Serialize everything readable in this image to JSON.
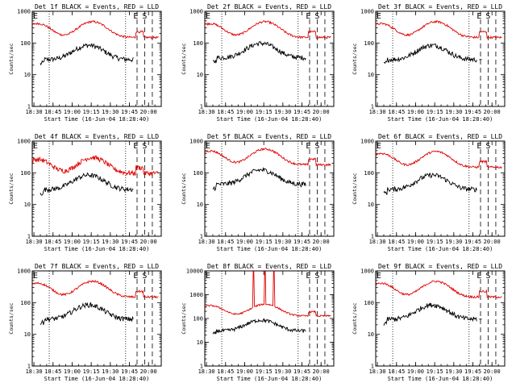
{
  "chart_data": [
    {
      "type": "line",
      "title": "Det 1f BLACK = Events, RED = LLD",
      "xlabel": "Start Time (16-Jun-04 18:28:40)",
      "ylabel": "Counts/sec",
      "xticks": [
        "18:30",
        "18:45",
        "19:00",
        "19:15",
        "19:30",
        "19:45",
        "20:00"
      ],
      "yticks": [
        "1",
        "10",
        "100",
        "1000"
      ],
      "ylim": [
        1,
        1000
      ],
      "series": [
        {
          "name": "Events",
          "color": "#000000"
        },
        {
          "name": "LLD",
          "color": "#e00000"
        }
      ],
      "markers": [
        "E",
        "E",
        "S"
      ]
    },
    {
      "type": "line",
      "title": "Det 2f BLACK = Events, RED = LLD",
      "xlabel": "Start Time (16-Jun-04 18:28:40)",
      "ylabel": "Counts/sec",
      "xticks": [
        "18:30",
        "18:45",
        "19:00",
        "19:15",
        "19:30",
        "19:45",
        "20:00"
      ],
      "yticks": [
        "1",
        "10",
        "100",
        "1000"
      ],
      "ylim": [
        1,
        1000
      ],
      "series": [
        {
          "name": "Events",
          "color": "#000000"
        },
        {
          "name": "LLD",
          "color": "#e00000"
        }
      ],
      "markers": [
        "E",
        "E",
        "S"
      ]
    },
    {
      "type": "line",
      "title": "Det 3f BLACK = Events, RED = LLD",
      "xlabel": "Start Time (16-Jun-04 18:28:40)",
      "ylabel": "Counts/sec",
      "xticks": [
        "18:30",
        "18:45",
        "19:00",
        "19:15",
        "19:30",
        "19:45",
        "20:00"
      ],
      "yticks": [
        "1",
        "10",
        "100",
        "1000"
      ],
      "ylim": [
        1,
        1000
      ],
      "series": [
        {
          "name": "Events",
          "color": "#000000"
        },
        {
          "name": "LLD",
          "color": "#e00000"
        }
      ],
      "markers": [
        "E",
        "E",
        "S"
      ]
    },
    {
      "type": "line",
      "title": "Det 4f BLACK = Events, RED = LLD",
      "xlabel": "Start Time (16-Jun-04 18:28:40)",
      "ylabel": "Counts/sec",
      "xticks": [
        "18:30",
        "18:45",
        "19:00",
        "19:15",
        "19:30",
        "19:45",
        "20:00"
      ],
      "yticks": [
        "1",
        "10",
        "100",
        "1000"
      ],
      "ylim": [
        1,
        1000
      ],
      "series": [
        {
          "name": "Events",
          "color": "#000000"
        },
        {
          "name": "LLD",
          "color": "#e00000"
        }
      ],
      "markers": [
        "E",
        "E",
        "S"
      ]
    },
    {
      "type": "line",
      "title": "Det 5f BLACK = Events, RED = LLD",
      "xlabel": "Start Time (16-Jun-04 18:28:40)",
      "ylabel": "Counts/sec",
      "xticks": [
        "18:30",
        "18:45",
        "19:00",
        "19:15",
        "19:30",
        "19:45",
        "20:00"
      ],
      "yticks": [
        "1",
        "10",
        "100",
        "1000"
      ],
      "ylim": [
        1,
        1000
      ],
      "series": [
        {
          "name": "Events",
          "color": "#000000"
        },
        {
          "name": "LLD",
          "color": "#e00000"
        }
      ],
      "markers": [
        "E",
        "E",
        "S"
      ]
    },
    {
      "type": "line",
      "title": "Det 6f BLACK = Events, RED = LLD",
      "xlabel": "Start Time (16-Jun-04 18:28:40)",
      "ylabel": "Counts/sec",
      "xticks": [
        "18:30",
        "18:45",
        "19:00",
        "19:15",
        "19:30",
        "19:45",
        "20:00"
      ],
      "yticks": [
        "1",
        "10",
        "100",
        "1000"
      ],
      "ylim": [
        1,
        1000
      ],
      "series": [
        {
          "name": "Events",
          "color": "#000000"
        },
        {
          "name": "LLD",
          "color": "#e00000"
        }
      ],
      "markers": [
        "E",
        "E",
        "S"
      ]
    },
    {
      "type": "line",
      "title": "Det 7f BLACK = Events, RED = LLD",
      "xlabel": "Start Time (16-Jun-04 18:28:40)",
      "ylabel": "Counts/sec",
      "xticks": [
        "18:30",
        "18:45",
        "19:00",
        "19:15",
        "19:30",
        "19:45",
        "20:00"
      ],
      "yticks": [
        "1",
        "10",
        "100",
        "1000"
      ],
      "ylim": [
        1,
        1000
      ],
      "series": [
        {
          "name": "Events",
          "color": "#000000"
        },
        {
          "name": "LLD",
          "color": "#e00000"
        }
      ],
      "markers": [
        "E",
        "E",
        "S"
      ]
    },
    {
      "type": "line",
      "title": "Det 8f BLACK = Events, RED = LLD",
      "xlabel": "Start Time (16-Jun-04 18:28:40)",
      "ylabel": "Counts/sec",
      "xticks": [
        "18:30",
        "18:45",
        "19:00",
        "19:15",
        "19:30",
        "19:45",
        "20:00"
      ],
      "yticks": [
        "1",
        "10",
        "100",
        "1000",
        "10000"
      ],
      "ylim": [
        1,
        10000
      ],
      "series": [
        {
          "name": "Events",
          "color": "#000000"
        },
        {
          "name": "LLD",
          "color": "#e00000"
        }
      ],
      "markers": [
        "E",
        "E",
        "S"
      ]
    },
    {
      "type": "line",
      "title": "Det 9f BLACK = Events, RED = LLD",
      "xlabel": "Start Time (16-Jun-04 18:28:40)",
      "ylabel": "Counts/sec",
      "xticks": [
        "18:30",
        "18:45",
        "19:00",
        "19:15",
        "19:30",
        "19:45",
        "20:00"
      ],
      "yticks": [
        "1",
        "10",
        "100",
        "1000"
      ],
      "ylim": [
        1,
        1000
      ],
      "series": [
        {
          "name": "Events",
          "color": "#000000"
        },
        {
          "name": "LLD",
          "color": "#e00000"
        }
      ],
      "markers": [
        "E",
        "E",
        "S"
      ]
    }
  ]
}
